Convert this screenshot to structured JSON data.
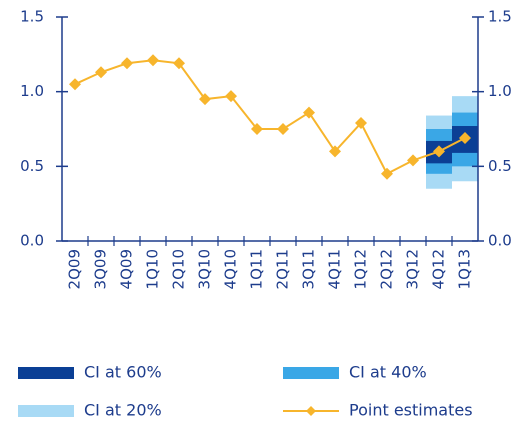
{
  "chart_data": {
    "type": "line",
    "categories": [
      "2Q09",
      "3Q09",
      "4Q09",
      "1Q10",
      "2Q10",
      "3Q10",
      "4Q10",
      "1Q11",
      "2Q11",
      "3Q11",
      "4Q11",
      "1Q12",
      "2Q12",
      "3Q12",
      "4Q12",
      "1Q13"
    ],
    "bands": [
      {
        "name": "CI at 20%",
        "color": "#a8daf5",
        "low": [
          null,
          null,
          null,
          null,
          null,
          null,
          null,
          null,
          null,
          null,
          null,
          null,
          null,
          null,
          0.35,
          0.4
        ],
        "high": [
          null,
          null,
          null,
          null,
          null,
          null,
          null,
          null,
          null,
          null,
          null,
          null,
          null,
          null,
          0.84,
          0.97
        ]
      },
      {
        "name": "CI at 40%",
        "color": "#3aa7e6",
        "low": [
          null,
          null,
          null,
          null,
          null,
          null,
          null,
          null,
          null,
          null,
          null,
          null,
          null,
          null,
          0.45,
          0.5
        ],
        "high": [
          null,
          null,
          null,
          null,
          null,
          null,
          null,
          null,
          null,
          null,
          null,
          null,
          null,
          null,
          0.75,
          0.86
        ]
      },
      {
        "name": "CI at 60%",
        "color": "#0b3f95",
        "low": [
          null,
          null,
          null,
          null,
          null,
          null,
          null,
          null,
          null,
          null,
          null,
          null,
          null,
          null,
          0.52,
          0.59
        ],
        "high": [
          null,
          null,
          null,
          null,
          null,
          null,
          null,
          null,
          null,
          null,
          null,
          null,
          null,
          null,
          0.67,
          0.77
        ]
      }
    ],
    "series": [
      {
        "name": "Point estimates",
        "color": "#f7b52c",
        "values": [
          1.05,
          1.13,
          1.19,
          1.21,
          1.19,
          0.95,
          0.97,
          0.75,
          0.75,
          0.86,
          0.6,
          0.79,
          0.45,
          0.54,
          0.6,
          0.69
        ]
      }
    ],
    "ylim": [
      0,
      1.5
    ],
    "yticks": [
      {
        "value": 0,
        "label": "0.0"
      },
      0.5,
      {
        "value": 1,
        "label": "1.0"
      },
      1.5
    ],
    "axis_color": "#1d3c8c"
  }
}
